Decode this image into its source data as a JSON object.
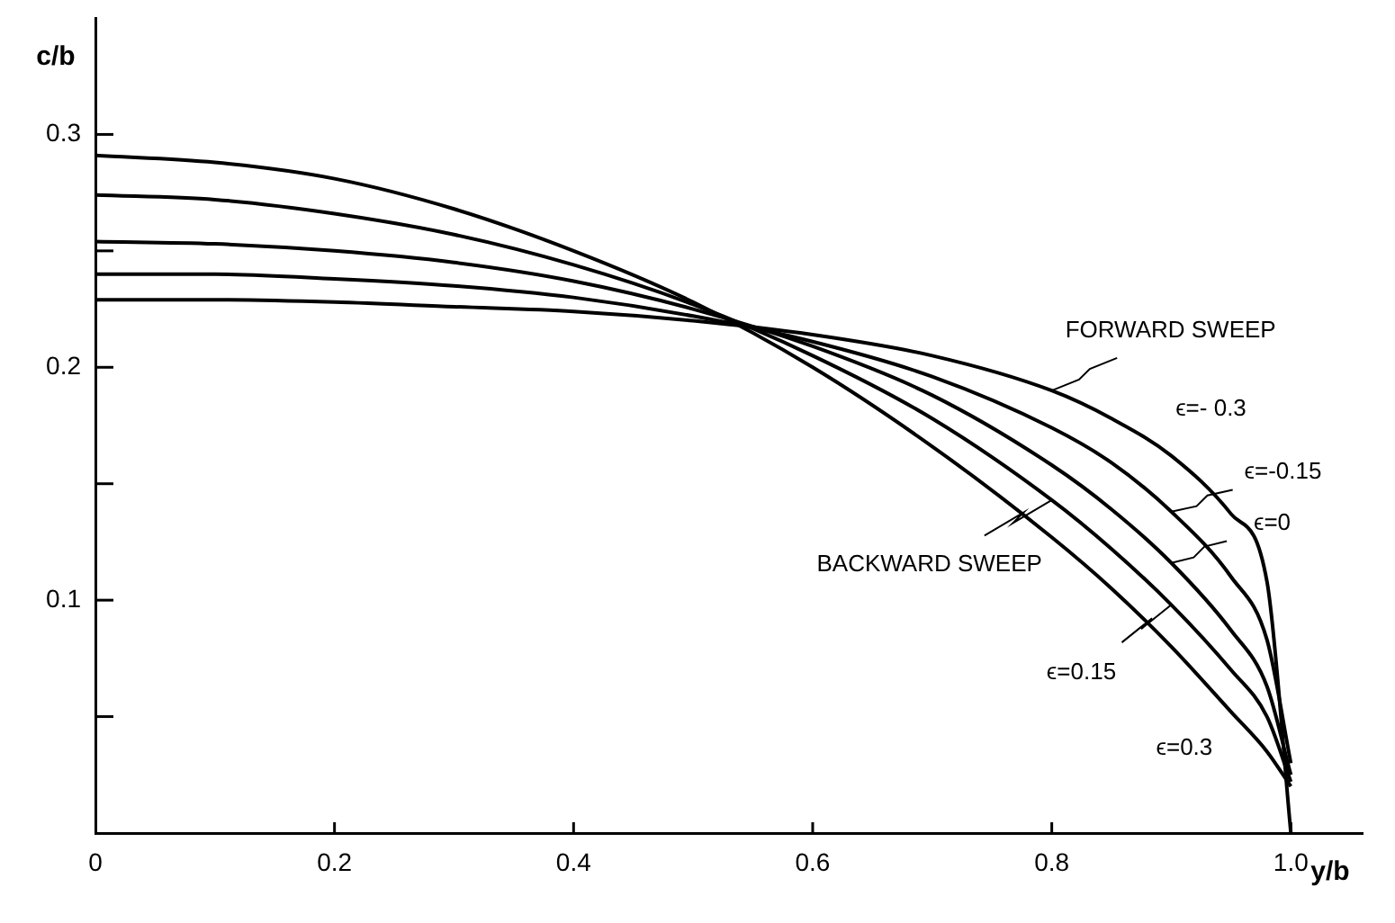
{
  "chart_data": {
    "type": "line",
    "xlabel": "y/b",
    "ylabel": "c/b",
    "x": [
      0,
      0.1,
      0.2,
      0.3,
      0.4,
      0.5,
      0.6,
      0.7,
      0.8,
      0.85,
      0.9,
      0.95,
      0.98,
      1.0
    ],
    "series": [
      {
        "color": "#000000",
        "values": [
          0.291,
          0.288,
          0.281,
          0.268,
          0.25,
          0.228,
          0.2,
          0.166,
          0.127,
          0.105,
          0.08,
          0.052,
          0.035,
          0.02
        ]
      },
      {
        "color": "#000000",
        "values": [
          0.274,
          0.272,
          0.266,
          0.257,
          0.244,
          0.227,
          0.205,
          0.178,
          0.143,
          0.122,
          0.098,
          0.07,
          0.05,
          0.022
        ]
      },
      {
        "color": "#000000",
        "values": [
          0.254,
          0.253,
          0.25,
          0.245,
          0.237,
          0.225,
          0.209,
          0.188,
          0.158,
          0.139,
          0.116,
          0.087,
          0.063,
          0.025
        ]
      },
      {
        "color": "#000000",
        "values": [
          0.24,
          0.24,
          0.238,
          0.235,
          0.23,
          0.222,
          0.211,
          0.196,
          0.174,
          0.159,
          0.138,
          0.11,
          0.083,
          0.03
        ]
      },
      {
        "color": "#000000",
        "values": [
          0.229,
          0.229,
          0.228,
          0.226,
          0.224,
          0.22,
          0.214,
          0.205,
          0.19,
          0.178,
          0.162,
          0.137,
          0.108,
          0
        ]
      }
    ],
    "xlim": [
      0,
      1.06
    ],
    "ylim": [
      0,
      0.35
    ],
    "xticks": [
      0,
      0.2,
      0.4,
      0.6,
      0.8,
      {
        "value": 1,
        "label": "1.0"
      }
    ],
    "yticks": [
      {
        "value": 0.05,
        "label": null
      },
      0.1,
      {
        "value": 0.15,
        "label": null
      },
      0.2,
      {
        "value": 0.25,
        "label": null
      },
      0.3
    ],
    "grid": false,
    "legend": false,
    "marker": "none",
    "line_style": "solid",
    "annotations": [
      {
        "text": "FORWARD SWEEP",
        "x": 0.8,
        "y": 0.19
      },
      {
        "text": "ϵ=- 0.3",
        "x": 0.9,
        "y": 0.162
      },
      {
        "text": "ϵ=-0.15",
        "x": 0.9,
        "y": 0.138
      },
      {
        "text": "ϵ=0",
        "x": 0.9,
        "y": 0.116
      },
      {
        "text": "BACKWARD SWEEP",
        "x": 0.8,
        "y": 0.143
      },
      {
        "text": "ϵ=0.15",
        "x": 0.9,
        "y": 0.098
      },
      {
        "text": "ϵ=0.3",
        "x": 0.95,
        "y": 0.052
      }
    ]
  }
}
